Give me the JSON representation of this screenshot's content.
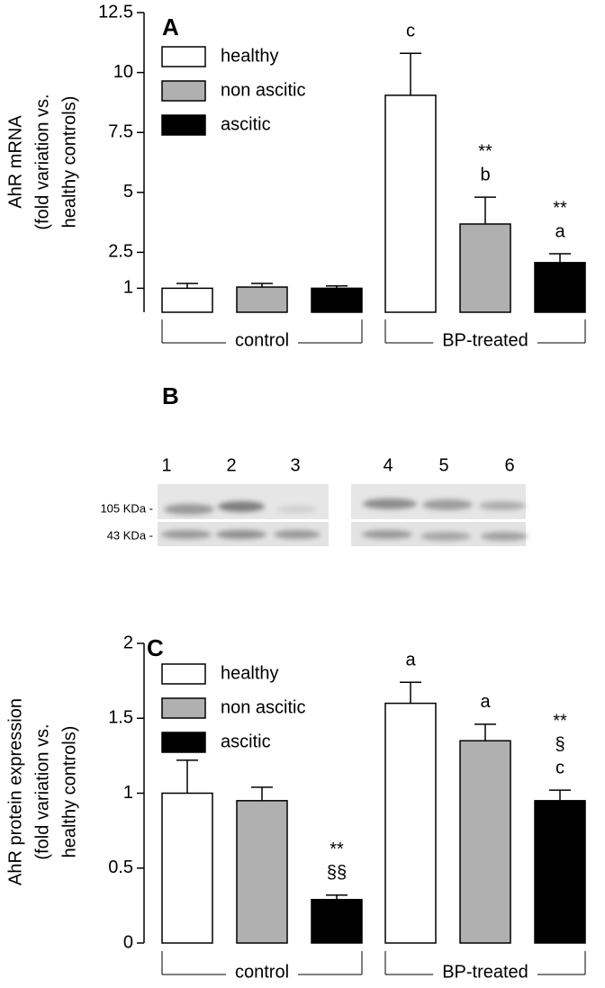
{
  "chart_data": [
    {
      "type": "bar",
      "label": "A",
      "ylabel": [
        "AhR mRNA",
        "(fold variation vs.",
        "healthy controls)"
      ],
      "categories": [
        "control",
        "BP-treated"
      ],
      "ylim": [
        0,
        12.5
      ],
      "yticks": [
        1,
        2.5,
        5,
        7.5,
        10,
        12.5
      ],
      "series": [
        {
          "name": "healthy",
          "color": "#ffffff",
          "values": [
            1.0,
            9.05
          ],
          "errors": [
            0.2,
            1.75
          ],
          "annotations": [
            null,
            [
              "c"
            ]
          ]
        },
        {
          "name": "non ascitic",
          "color": "#b0b0b0",
          "values": [
            1.05,
            3.68
          ],
          "errors": [
            0.15,
            1.12
          ],
          "annotations": [
            null,
            [
              "b",
              "**"
            ]
          ]
        },
        {
          "name": "ascitic",
          "color": "#000000",
          "values": [
            1.0,
            2.07
          ],
          "errors": [
            0.1,
            0.37
          ],
          "annotations": [
            null,
            [
              "a",
              "**"
            ]
          ]
        }
      ]
    },
    {
      "type": "bar",
      "label": "C",
      "ylabel": [
        "AhR protein expression",
        "(fold variation vs.",
        "healthy controls)"
      ],
      "categories": [
        "control",
        "BP-treated"
      ],
      "ylim": [
        0,
        2
      ],
      "yticks": [
        0,
        0.5,
        1,
        1.5,
        2
      ],
      "series": [
        {
          "name": "healthy",
          "color": "#ffffff",
          "values": [
            1.0,
            1.6
          ],
          "errors": [
            0.22,
            0.14
          ],
          "annotations": [
            null,
            [
              "a"
            ]
          ]
        },
        {
          "name": "non ascitic",
          "color": "#b0b0b0",
          "values": [
            0.95,
            1.35
          ],
          "errors": [
            0.09,
            0.11
          ],
          "annotations": [
            null,
            [
              "a"
            ]
          ]
        },
        {
          "name": "ascitic",
          "color": "#000000",
          "values": [
            0.29,
            0.95
          ],
          "errors": [
            0.03,
            0.07
          ],
          "annotations": [
            [
              "§§",
              "**"
            ],
            [
              "c",
              "§",
              "**"
            ]
          ]
        }
      ]
    }
  ],
  "blot": {
    "label": "B",
    "lanes": [
      "1",
      "2",
      "3",
      "4",
      "5",
      "6"
    ],
    "markers": [
      "105 KDa -",
      "43 KDa -"
    ]
  }
}
